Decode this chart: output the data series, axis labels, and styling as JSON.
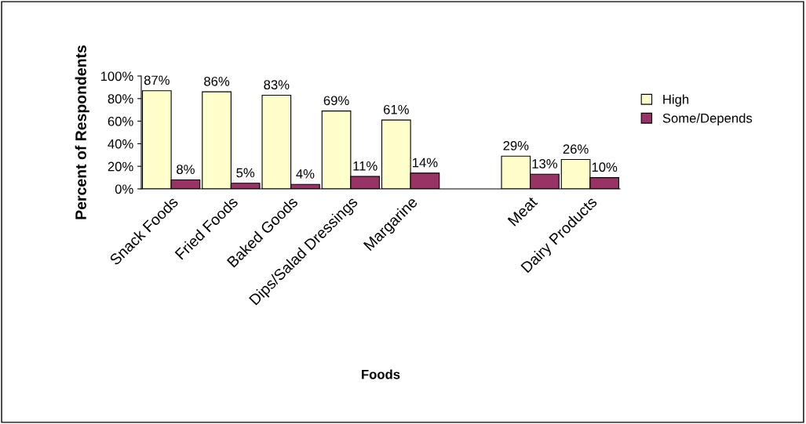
{
  "chart_data": {
    "type": "bar",
    "xlabel": "Foods",
    "ylabel": "Percent of Respondents",
    "categories": [
      "Snack Foods",
      "Fried Foods",
      "Baked Goods",
      "Dips/Salad Dressings",
      "Margarine",
      null,
      "Meat",
      "Dairy Products"
    ],
    "series": [
      {
        "name": "High",
        "color": "#ffffcc",
        "values": [
          87,
          86,
          83,
          69,
          61,
          null,
          29,
          26
        ],
        "value_labels": [
          "87%",
          "86%",
          "83%",
          "69%",
          "61%",
          null,
          "29%",
          "26%"
        ]
      },
      {
        "name": "Some/Depends",
        "color": "#993366",
        "values": [
          8,
          5,
          4,
          11,
          14,
          null,
          13,
          10
        ],
        "value_labels": [
          "8%",
          "5%",
          "4%",
          "11%",
          "14%",
          null,
          "13%",
          "10%"
        ]
      }
    ],
    "ylim": [
      0,
      100
    ],
    "yticks": [
      {
        "value": 0,
        "label": "0%"
      },
      {
        "value": 20,
        "label": "20%"
      },
      {
        "value": 40,
        "label": "40%"
      },
      {
        "value": 60,
        "label": "60%"
      },
      {
        "value": 80,
        "label": "80%"
      },
      {
        "value": 100,
        "label": "100%"
      }
    ],
    "grid": false,
    "legend": "right"
  }
}
